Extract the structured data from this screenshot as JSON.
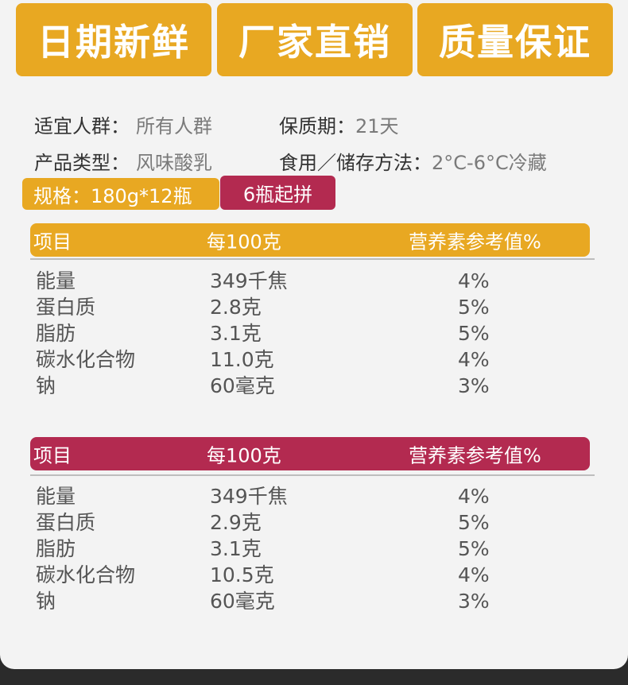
{
  "features": [
    "日期新鲜",
    "厂家直销",
    "质量保证"
  ],
  "info": {
    "crowd_label": "适宜人群：",
    "crowd_value": "所有人群",
    "shelf_label": "保质期：",
    "shelf_value": "21天",
    "type_label": "产品类型：",
    "type_value": "风味酸乳",
    "storage_label": "食用／储存方法：",
    "storage_value": "2°C-6°C冷藏"
  },
  "tags": {
    "spec": "规格：180g*12瓶",
    "min_order": "6瓶起拼"
  },
  "colors": {
    "gold": "#e8a822",
    "crimson": "#b32a50"
  },
  "tables": [
    {
      "headers": [
        "项目",
        "每100克",
        "营养素参考值%"
      ],
      "rows": [
        [
          "能量",
          "349千焦",
          "4%"
        ],
        [
          "蛋白质",
          "2.8克",
          "5%"
        ],
        [
          "脂肪",
          "3.1克",
          "5%"
        ],
        [
          "碳水化合物",
          "11.0克",
          "4%"
        ],
        [
          "钠",
          "60毫克",
          "3%"
        ]
      ]
    },
    {
      "headers": [
        "项目",
        "每100克",
        "营养素参考值%"
      ],
      "rows": [
        [
          "能量",
          "349千焦",
          "4%"
        ],
        [
          "蛋白质",
          "2.9克",
          "5%"
        ],
        [
          "脂肪",
          "3.1克",
          "5%"
        ],
        [
          "碳水化合物",
          "10.5克",
          "4%"
        ],
        [
          "钠",
          "60毫克",
          "3%"
        ]
      ]
    }
  ]
}
